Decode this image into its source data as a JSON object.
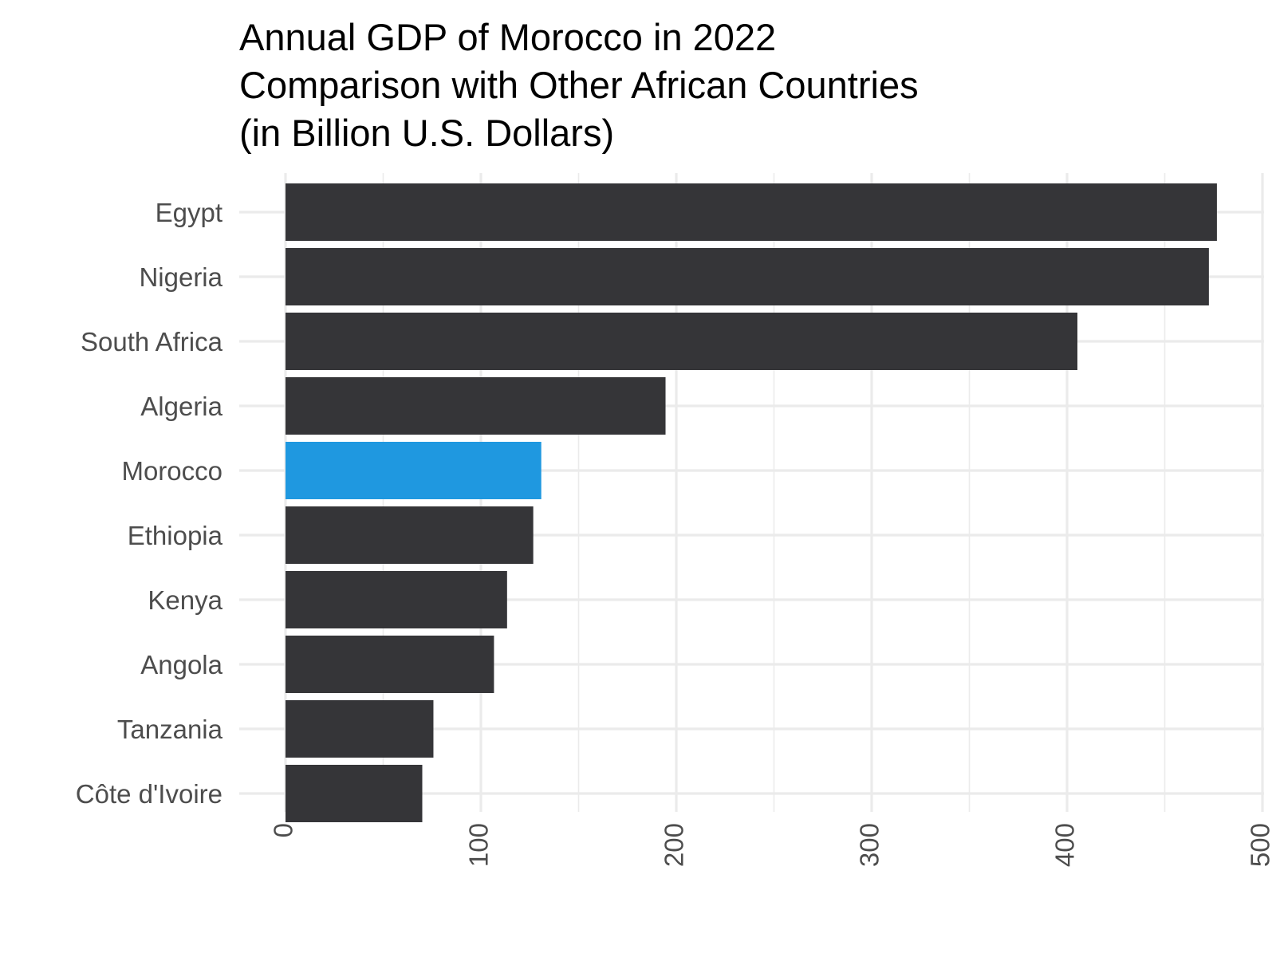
{
  "chart_data": {
    "type": "bar",
    "orientation": "horizontal",
    "title": [
      "Annual GDP of Morocco in 2022",
      "Comparison with Other African Countries",
      "(in Billion U.S. Dollars)"
    ],
    "xlabel": "",
    "ylabel": "",
    "categories": [
      "Egypt",
      "Nigeria",
      "South Africa",
      "Algeria",
      "Morocco",
      "Ethiopia",
      "Kenya",
      "Angola",
      "Tanzania",
      "Côte d'Ivoire"
    ],
    "values": [
      476.7,
      472.6,
      405.3,
      194.5,
      130.9,
      126.8,
      113.4,
      106.7,
      75.7,
      70.0
    ],
    "highlight": "Morocco",
    "xlim": [
      0,
      500
    ],
    "xticks": [
      0,
      100,
      200,
      300,
      400,
      500
    ],
    "grid": true,
    "legend": "none",
    "colors": {
      "bar": "#353538",
      "highlight": "#1f98e0",
      "grid": "#ebebeb",
      "text": "#4d4d4d",
      "title": "#000000"
    }
  }
}
